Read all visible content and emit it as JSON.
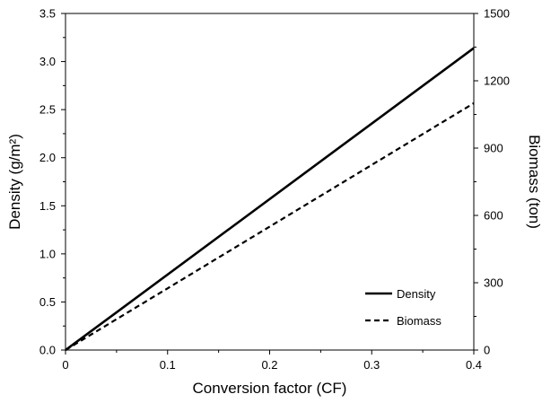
{
  "chart_data": {
    "type": "line",
    "xlabel": "Conversion factor (CF)",
    "ylabel_left": "Density (g/m²)",
    "ylabel_right": "Biomass (ton)",
    "xlim": [
      0,
      0.4
    ],
    "ylim_left": [
      0,
      3.5
    ],
    "ylim_right": [
      0,
      1500
    ],
    "x_ticks": [
      "0",
      "0.1",
      "0.2",
      "0.3",
      "0.4"
    ],
    "x_tick_values": [
      0,
      0.1,
      0.2,
      0.3,
      0.4
    ],
    "y_left_ticks": [
      "0.0",
      "0.5",
      "1.0",
      "1.5",
      "2.0",
      "2.5",
      "3.0",
      "3.5"
    ],
    "y_left_tick_values": [
      0,
      0.5,
      1.0,
      1.5,
      2.0,
      2.5,
      3.0,
      3.5
    ],
    "y_right_ticks": [
      "0",
      "300",
      "600",
      "900",
      "1200",
      "1500"
    ],
    "y_right_tick_values": [
      0,
      300,
      600,
      900,
      1200,
      1500
    ],
    "grid": false,
    "legend_position": "bottom-right",
    "series": [
      {
        "name": "Density",
        "axis": "left",
        "style": "solid",
        "color": "#000000",
        "x": [
          0,
          0.4
        ],
        "y": [
          0,
          3.14
        ]
      },
      {
        "name": "Biomass",
        "axis": "right",
        "style": "dashed",
        "color": "#000000",
        "x": [
          0,
          0.4
        ],
        "y": [
          0,
          1100
        ]
      }
    ]
  }
}
